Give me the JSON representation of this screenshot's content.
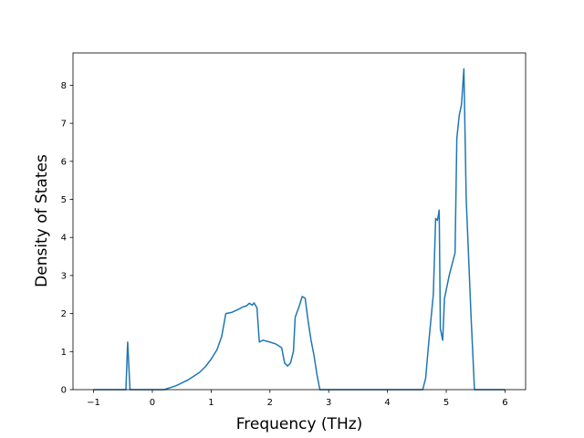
{
  "chart_data": {
    "type": "line",
    "xlabel": "Frequency (THz)",
    "ylabel": "Density of States",
    "x": [
      -1,
      -0.45,
      -0.42,
      -0.38,
      0.2,
      0.4,
      0.6,
      0.8,
      0.9,
      1.0,
      1.1,
      1.18,
      1.25,
      1.35,
      1.45,
      1.55,
      1.6,
      1.65,
      1.7,
      1.73,
      1.78,
      1.82,
      1.88,
      2.0,
      2.1,
      2.15,
      2.2,
      2.25,
      2.3,
      2.35,
      2.4,
      2.43,
      2.5,
      2.55,
      2.6,
      2.65,
      2.7,
      2.75,
      2.8,
      2.85,
      4.6,
      4.65,
      4.7,
      4.78,
      4.82,
      4.85,
      4.88,
      4.9,
      4.94,
      4.97,
      5.05,
      5.15,
      5.18,
      5.22,
      5.26,
      5.3,
      5.34,
      5.42,
      5.48,
      6.0
    ],
    "series": [
      {
        "color": "#1f77b4",
        "values": [
          0,
          0,
          1.25,
          0,
          0,
          0.1,
          0.25,
          0.45,
          0.6,
          0.8,
          1.05,
          1.4,
          2.0,
          2.03,
          2.1,
          2.18,
          2.2,
          2.27,
          2.22,
          2.28,
          2.15,
          1.25,
          1.3,
          1.25,
          1.2,
          1.15,
          1.1,
          0.7,
          0.62,
          0.7,
          1.0,
          1.9,
          2.2,
          2.45,
          2.4,
          1.8,
          1.3,
          0.9,
          0.4,
          0,
          0,
          0.3,
          1.2,
          2.5,
          4.5,
          4.45,
          4.72,
          1.6,
          1.3,
          2.4,
          3.0,
          3.6,
          6.6,
          7.2,
          7.5,
          8.43,
          5.0,
          2.0,
          0,
          0
        ]
      }
    ],
    "xlim": [
      -1.35,
      6.35
    ],
    "xticks": [
      {
        "value": -1,
        "label": "−1"
      },
      0,
      1,
      2,
      3,
      4,
      5,
      6
    ],
    "ylim": [
      0,
      8.85
    ],
    "yticks": [
      0,
      1,
      2,
      3,
      4,
      5,
      6,
      7,
      8
    ]
  }
}
